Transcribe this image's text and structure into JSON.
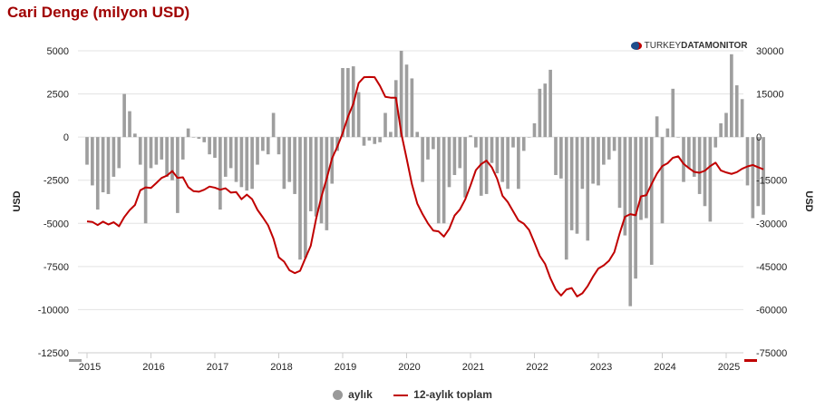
{
  "title": "Cari Denge (milyon USD)",
  "watermark": {
    "light": "TURKEY",
    "bold_mid": "DATA",
    "bold_end": "MONITOR"
  },
  "colors": {
    "bar": "#9e9e9e",
    "line": "#c00000",
    "title": "#a00000"
  },
  "chart_data": {
    "type": "bar",
    "title": "Cari Denge (milyon USD)",
    "ylabel": "USD",
    "y2label": "USD",
    "ylim": [
      -12500,
      5000
    ],
    "y2lim": [
      -75000,
      30000
    ],
    "yticks": [
      5000,
      2500,
      0,
      -2500,
      -5000,
      -7500,
      -10000,
      -12500
    ],
    "y2ticks": [
      30000,
      15000,
      0,
      -15000,
      -30000,
      -45000,
      -60000,
      -75000
    ],
    "xticks": [
      "2015",
      "2016",
      "2017",
      "2018",
      "2019",
      "2020",
      "2021",
      "2022",
      "2023",
      "2024",
      "2025"
    ],
    "x_start": "2015-01",
    "legend_position": "bottom",
    "series": [
      {
        "name": "aylık",
        "type": "bar",
        "axis": "left",
        "values": [
          -1600,
          -2800,
          -4200,
          -3200,
          -3300,
          -2300,
          -1800,
          2500,
          1500,
          200,
          -1600,
          -5000,
          -1800,
          -1600,
          -1300,
          -2300,
          -2500,
          -4400,
          -1300,
          500,
          0,
          -100,
          -300,
          -1000,
          -1200,
          -4200,
          -2300,
          -1800,
          -2600,
          -2900,
          -3100,
          -3000,
          -1600,
          -800,
          -1000,
          1400,
          -1000,
          -3000,
          -2600,
          -3300,
          -7100,
          -7000,
          -4300,
          -4600,
          -5000,
          -5400,
          -2700,
          -800,
          4000,
          4000,
          4100,
          2600,
          -500,
          -200,
          -400,
          -300,
          1400,
          300,
          3300,
          5000,
          4200,
          3400,
          300,
          -2600,
          -1300,
          -700,
          -5000,
          -5000,
          -2900,
          -2200,
          -1800,
          -3500,
          100,
          -600,
          -3400,
          -3300,
          -1500,
          -2100,
          -2600,
          -3000,
          -600,
          -3000,
          -800,
          0,
          800,
          2800,
          3100,
          3900,
          -2200,
          -2400,
          -7100,
          -5400,
          -5600,
          -3000,
          -6000,
          -2700,
          -2800,
          -1600,
          -1300,
          -800,
          -4100,
          -5700,
          -9800,
          -8200,
          -4800,
          -4700,
          -7400,
          1200,
          -5000,
          500,
          2800,
          0,
          -2600,
          -1800,
          -2300,
          -3300,
          -4000,
          -4900,
          -600,
          800,
          1400,
          4800,
          3000,
          2200,
          -2800,
          -4700,
          -4000,
          -4500
        ]
      },
      {
        "name": "12-aylık toplam",
        "type": "line",
        "axis": "right",
        "values": [
          -29300,
          -29500,
          -30600,
          -29400,
          -30400,
          -29600,
          -31000,
          -27800,
          -25400,
          -23600,
          -18500,
          -17500,
          -17700,
          -16000,
          -14200,
          -13400,
          -11800,
          -14200,
          -14000,
          -17400,
          -18800,
          -19000,
          -18300,
          -17200,
          -17600,
          -18300,
          -17800,
          -19300,
          -19100,
          -21600,
          -20000,
          -21600,
          -25300,
          -27900,
          -30700,
          -35300,
          -41800,
          -43300,
          -46300,
          -47300,
          -46500,
          -42100,
          -37800,
          -28500,
          -20800,
          -14400,
          -7400,
          -3300,
          1400,
          7100,
          11600,
          18800,
          20800,
          20900,
          20800,
          17800,
          14000,
          13700,
          13700,
          1300,
          -7400,
          -16400,
          -23100,
          -26800,
          -30000,
          -32500,
          -32800,
          -34600,
          -31900,
          -27300,
          -25200,
          -21700,
          -16800,
          -11500,
          -9400,
          -8200,
          -10500,
          -14500,
          -20400,
          -22600,
          -25800,
          -29000,
          -30100,
          -32300,
          -36700,
          -41300,
          -44100,
          -49100,
          -53000,
          -55100,
          -53000,
          -52500,
          -55400,
          -54300,
          -51800,
          -48500,
          -45700,
          -44600,
          -43000,
          -40000,
          -33500,
          -27700,
          -26800,
          -27200,
          -20600,
          -20200,
          -16300,
          -12700,
          -10100,
          -9100,
          -7200,
          -6700,
          -9300,
          -10800,
          -12100,
          -12400,
          -11700,
          -10100,
          -8900,
          -11600,
          -12300,
          -12800,
          -12200,
          -11000,
          -10200,
          -9700,
          -10500,
          -11200
        ]
      }
    ]
  }
}
